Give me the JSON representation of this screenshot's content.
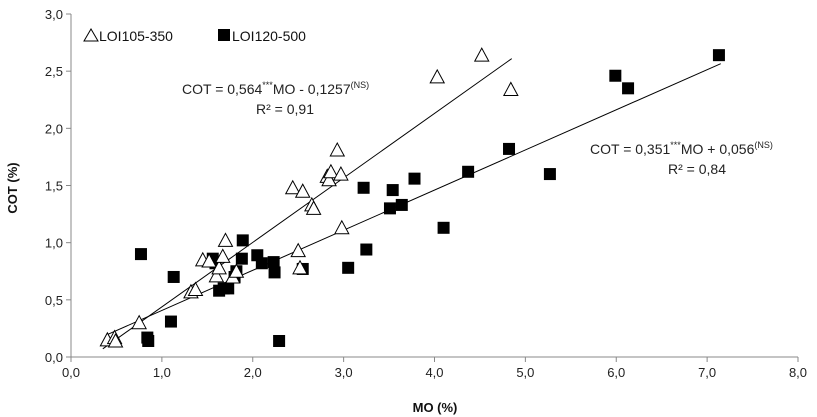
{
  "chart_data": {
    "type": "scatter",
    "xlabel": "MO (%)",
    "ylabel": "COT (%)",
    "xlim": [
      0,
      8
    ],
    "ylim": [
      0,
      3
    ],
    "x_ticks": [
      "0,0",
      "1,0",
      "2,0",
      "3,0",
      "4,0",
      "5,0",
      "6,0",
      "7,0",
      "8,0"
    ],
    "y_ticks": [
      "0,0",
      "0,5",
      "1,0",
      "1,5",
      "2,0",
      "2,5",
      "3,0"
    ],
    "grid": false,
    "legend_position": "top-left",
    "series": [
      {
        "name": "LOI105-350",
        "marker": "open-triangle",
        "color": "#000000",
        "points": [
          [
            0.4,
            0.15
          ],
          [
            0.48,
            0.17
          ],
          [
            0.49,
            0.14
          ],
          [
            0.75,
            0.3
          ],
          [
            1.32,
            0.57
          ],
          [
            1.37,
            0.59
          ],
          [
            1.45,
            0.85
          ],
          [
            1.52,
            0.84
          ],
          [
            1.6,
            0.71
          ],
          [
            1.63,
            0.78
          ],
          [
            1.67,
            0.88
          ],
          [
            1.7,
            1.02
          ],
          [
            1.78,
            0.7
          ],
          [
            1.82,
            0.75
          ],
          [
            2.44,
            1.48
          ],
          [
            2.5,
            0.93
          ],
          [
            2.52,
            0.78
          ],
          [
            2.55,
            1.45
          ],
          [
            2.65,
            1.33
          ],
          [
            2.67,
            1.3
          ],
          [
            2.82,
            1.58
          ],
          [
            2.84,
            1.55
          ],
          [
            2.86,
            1.62
          ],
          [
            2.93,
            1.81
          ],
          [
            2.97,
            1.6
          ],
          [
            2.98,
            1.13
          ],
          [
            4.03,
            2.45
          ],
          [
            4.52,
            2.64
          ],
          [
            4.84,
            2.34
          ]
        ],
        "regression": {
          "slope": 0.564,
          "intercept": -0.1257,
          "x_range": [
            0.35,
            4.85
          ]
        }
      },
      {
        "name": "LOI120-500",
        "marker": "filled-square",
        "color": "#000000",
        "points": [
          [
            0.77,
            0.9
          ],
          [
            0.84,
            0.17
          ],
          [
            0.85,
            0.14
          ],
          [
            1.1,
            0.31
          ],
          [
            1.13,
            0.7
          ],
          [
            1.56,
            0.86
          ],
          [
            1.59,
            0.82
          ],
          [
            1.63,
            0.58
          ],
          [
            1.68,
            0.6
          ],
          [
            1.73,
            0.6
          ],
          [
            1.8,
            0.7
          ],
          [
            1.82,
            0.75
          ],
          [
            1.88,
            0.86
          ],
          [
            1.89,
            1.02
          ],
          [
            2.05,
            0.89
          ],
          [
            2.1,
            0.82
          ],
          [
            2.23,
            0.83
          ],
          [
            2.24,
            0.74
          ],
          [
            2.29,
            0.14
          ],
          [
            2.55,
            0.77
          ],
          [
            3.05,
            0.78
          ],
          [
            3.22,
            1.48
          ],
          [
            3.25,
            0.94
          ],
          [
            3.51,
            1.3
          ],
          [
            3.54,
            1.46
          ],
          [
            3.64,
            1.33
          ],
          [
            3.78,
            1.56
          ],
          [
            4.37,
            1.62
          ],
          [
            4.1,
            1.13
          ],
          [
            4.82,
            1.82
          ],
          [
            5.27,
            1.6
          ],
          [
            5.99,
            2.46
          ],
          [
            6.13,
            2.35
          ],
          [
            7.13,
            2.64
          ]
        ],
        "regression": {
          "slope": 0.351,
          "intercept": 0.056,
          "x_range": [
            0.4,
            7.15
          ]
        }
      }
    ],
    "annotations": [
      {
        "id": "eq1",
        "line1_parts": [
          "COT = 0,564",
          "***",
          "MO - 0,1257",
          "(NS)"
        ],
        "line2": "R² = 0,91"
      },
      {
        "id": "eq2",
        "line1_parts": [
          "COT = 0,351",
          "***",
          "MO + 0,056",
          "(NS)"
        ],
        "line2": "R² = 0,84"
      }
    ]
  }
}
